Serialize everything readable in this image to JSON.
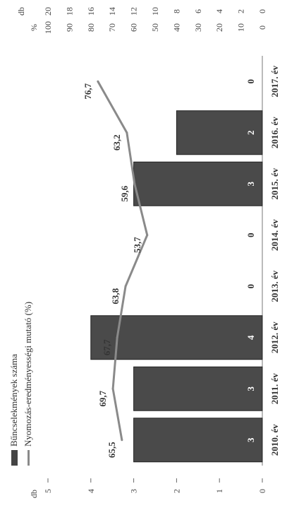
{
  "chart_data": {
    "type": "bar",
    "categories": [
      "2010. év",
      "2011. év",
      "2012. év",
      "2013. év",
      "2014. év",
      "2015. év",
      "2016. év",
      "2017. év"
    ],
    "series": [
      {
        "name": "Bűncselekmények száma",
        "type": "bar",
        "axis": "left",
        "values": [
          3,
          3,
          4,
          0,
          0,
          3,
          2,
          0
        ],
        "color": "#4a4a4a"
      },
      {
        "name": "Nyomozás-eredményességi mutató (%)",
        "type": "line",
        "axis": "right",
        "values": [
          65.5,
          69.7,
          67.7,
          63.8,
          53.7,
          59.6,
          63.2,
          76.7
        ],
        "color": "#8a8a8a"
      }
    ],
    "bar_value_labels": [
      "3",
      "3",
      "4",
      "0",
      "0",
      "3",
      "2",
      "0"
    ],
    "line_value_labels": [
      "65,5",
      "69,7",
      "67,7",
      "63,8",
      "53,7",
      "59,6",
      "63,2",
      "76,7"
    ],
    "left_axis": {
      "unit": "db",
      "ylim": [
        0,
        5
      ],
      "ticks": [
        "0",
        "1",
        "2",
        "3",
        "4",
        "5"
      ]
    },
    "right_axis": {
      "unit_pct": "%",
      "unit_db": "db",
      "ylim": [
        0,
        100
      ],
      "pct_ticks": [
        "0",
        "10",
        "20",
        "30",
        "40",
        "50",
        "60",
        "70",
        "80",
        "90",
        "100"
      ],
      "db_ticks": [
        "0",
        "2",
        "4",
        "6",
        "8",
        "10",
        "12",
        "14",
        "16",
        "18",
        "20"
      ]
    },
    "legend_position": "top-left",
    "grid": false
  }
}
